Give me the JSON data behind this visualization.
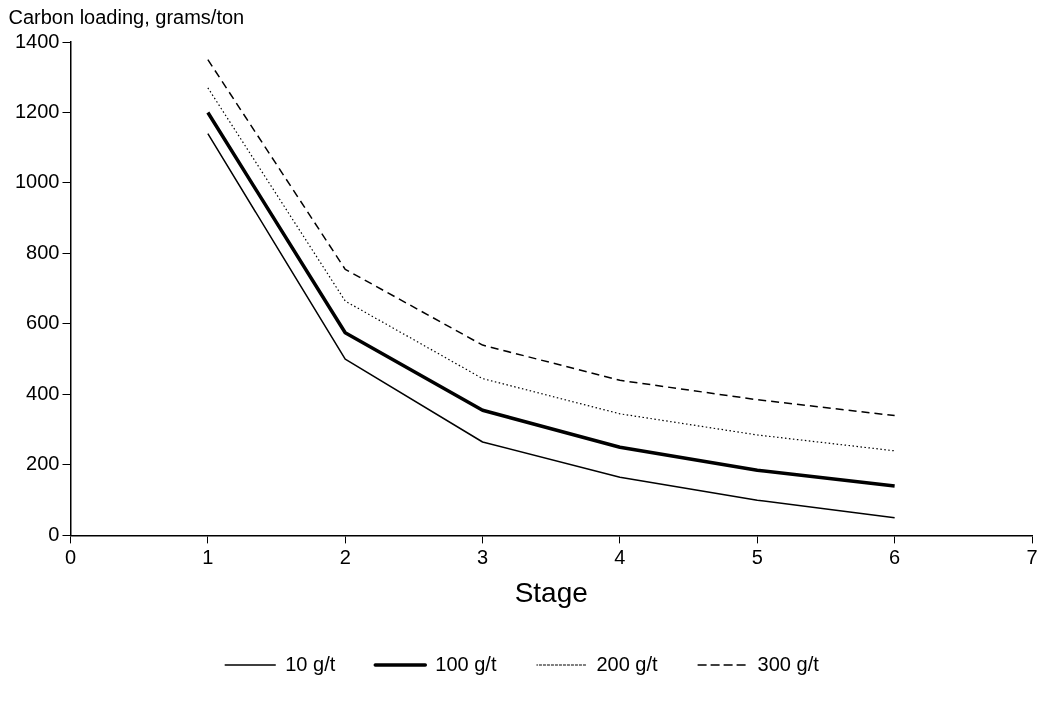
{
  "chart_data": {
    "type": "line",
    "xlabel": "Stage",
    "ylabel": "Carbon loading, grams/ton",
    "x": [
      1,
      2,
      3,
      4,
      5,
      6
    ],
    "series": [
      {
        "name": "10 g/t",
        "color": "#000000",
        "line_style": "solid",
        "values": [
          1140,
          500,
          265,
          165,
          100,
          50
        ]
      },
      {
        "name": "100 g/t",
        "color": "#000000",
        "line_style": "solid",
        "values": [
          1200,
          575,
          355,
          250,
          185,
          140
        ]
      },
      {
        "name": "200 g/t",
        "color": "#000000",
        "line_style": "dotted",
        "values": [
          1270,
          665,
          445,
          345,
          285,
          240
        ]
      },
      {
        "name": "300 g/t",
        "color": "#000000",
        "line_style": "dashed",
        "values": [
          1350,
          755,
          540,
          440,
          385,
          340
        ]
      }
    ],
    "xlim": [
      0,
      7
    ],
    "xticks": [
      0,
      1,
      2,
      3,
      4,
      5,
      6,
      7
    ],
    "ylim": [
      0,
      1400
    ],
    "yticks": [
      0,
      200,
      400,
      600,
      800,
      1000,
      1200,
      1400
    ],
    "grid": false,
    "legend": "bottom",
    "marker": "none"
  }
}
